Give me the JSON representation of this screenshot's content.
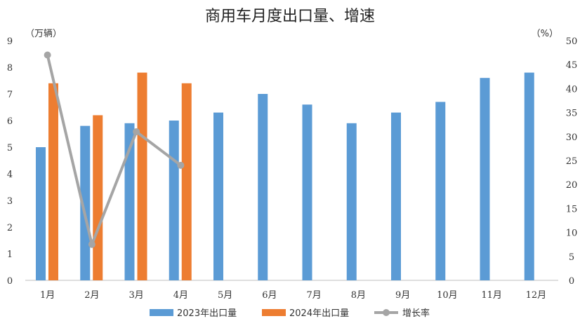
{
  "chart_data": {
    "type": "bar",
    "title": "商用车月度出口量、增速",
    "left_unit": "（万辆）",
    "right_unit": "（%）",
    "categories": [
      "1月",
      "2月",
      "3月",
      "4月",
      "5月",
      "6月",
      "7月",
      "8月",
      "9月",
      "10月",
      "11月",
      "12月"
    ],
    "series": [
      {
        "name": "2023年出口量",
        "type": "bar",
        "axis": "left",
        "color": "#5B9BD5",
        "values": [
          5.0,
          5.8,
          5.9,
          6.0,
          6.3,
          7.0,
          6.6,
          5.9,
          6.3,
          6.7,
          7.6,
          7.8
        ]
      },
      {
        "name": "2024年出口量",
        "type": "bar",
        "axis": "left",
        "color": "#ED7D31",
        "values": [
          7.4,
          6.2,
          7.8,
          7.4,
          null,
          null,
          null,
          null,
          null,
          null,
          null,
          null
        ]
      },
      {
        "name": "增长率",
        "type": "line",
        "axis": "right",
        "color": "#A5A5A5",
        "values": [
          47.0,
          7.5,
          31.0,
          24.0,
          null,
          null,
          null,
          null,
          null,
          null,
          null,
          null
        ]
      }
    ],
    "y_left": {
      "min": 0,
      "max": 9,
      "ticks": [
        "0",
        "1",
        "2",
        "3",
        "4",
        "5",
        "6",
        "7",
        "8",
        "9"
      ]
    },
    "y_right": {
      "min": 0,
      "max": 50,
      "ticks": [
        "0",
        "5",
        "10",
        "15",
        "20",
        "25",
        "30",
        "35",
        "40",
        "45",
        "50"
      ]
    },
    "legend": {
      "position": "bottom",
      "entries": [
        "2023年出口量",
        "2024年出口量",
        "增长率"
      ]
    },
    "grid": false
  }
}
